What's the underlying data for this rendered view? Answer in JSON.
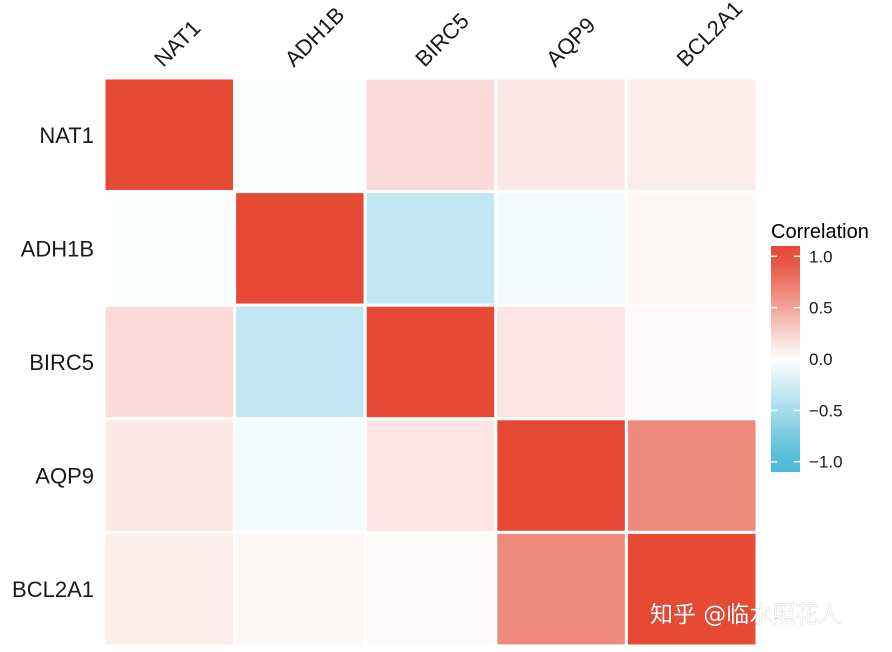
{
  "chart_data": {
    "type": "heatmap",
    "x_categories": [
      "NAT1",
      "ADH1B",
      "BIRC5",
      "AQP9",
      "BCL2A1"
    ],
    "y_categories": [
      "NAT1",
      "ADH1B",
      "BIRC5",
      "AQP9",
      "BCL2A1"
    ],
    "values": [
      [
        1.0,
        -0.02,
        0.2,
        0.12,
        0.1
      ],
      [
        -0.02,
        1.0,
        -0.35,
        -0.06,
        0.04
      ],
      [
        0.2,
        -0.35,
        1.0,
        0.15,
        0.03
      ],
      [
        0.12,
        -0.06,
        0.15,
        1.0,
        0.65
      ],
      [
        0.1,
        0.04,
        0.03,
        0.65,
        1.0
      ]
    ],
    "legend": {
      "title": "Correlation",
      "ticks": [
        "1.0",
        "0.5",
        "0.0",
        "−0.5",
        "−1.0"
      ],
      "tick_values": [
        1.0,
        0.5,
        0.0,
        -0.5,
        -1.0
      ],
      "range": [
        -1.1,
        1.1
      ],
      "placement": "right"
    },
    "colors": {
      "high": "#e64a35",
      "mid": "#ffffff",
      "low": "#4cbad6"
    }
  },
  "watermark": {
    "text": "知乎 @临水照花人"
  }
}
